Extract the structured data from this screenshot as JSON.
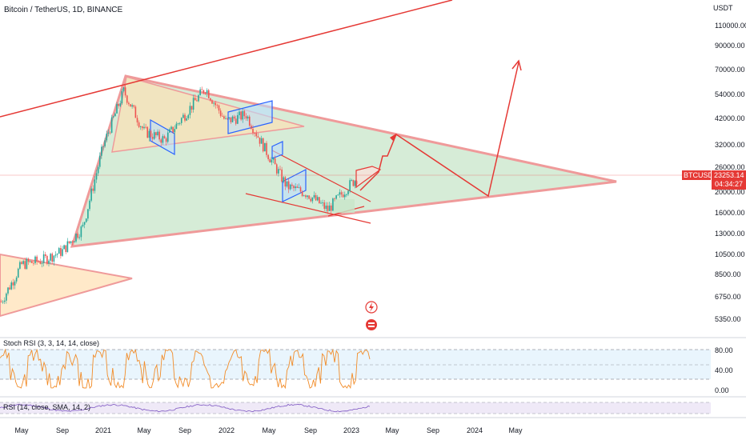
{
  "header": {
    "symbol_title": "Bitcoin / TetherUS, 1D, BINANCE"
  },
  "price_axis": {
    "unit": "USDT",
    "ticks": [
      "110000.00",
      "90000.00",
      "70000.00",
      "54000.00",
      "42000.00",
      "32000.00",
      "26000.00",
      "20000.00",
      "16000.00",
      "13000.00",
      "10500.00",
      "8500.00",
      "6750.00",
      "5350.00"
    ]
  },
  "price_badge": {
    "ticker": "BTCUSDT",
    "price": "23253.14",
    "countdown": "04:34:27",
    "color": "#e53935"
  },
  "time_axis": {
    "ticks": [
      "May",
      "Sep",
      "2021",
      "May",
      "Sep",
      "2022",
      "May",
      "Sep",
      "2023",
      "May",
      "Sep",
      "2024",
      "May"
    ]
  },
  "stoch_rsi": {
    "label": "Stoch RSI (3, 3, 14, 14, close)",
    "ticks": [
      "80.00",
      "40.00",
      "0.00"
    ],
    "color": "#f28c28"
  },
  "rsi": {
    "label": "RSI (14, close, SMA, 14, 2)",
    "color": "#7e57c2"
  },
  "colors": {
    "trend_line": "#e53935",
    "triangle_fill": "#c8e6c9",
    "wedge_fill": "#ffe0b2",
    "up_candle": "#26a69a",
    "down_candle": "#ef5350",
    "channel": "#2962ff"
  },
  "chart_data": {
    "type": "candlestick",
    "title": "Bitcoin / TetherUS, 1D, BINANCE",
    "y_scale": "log",
    "ylim": [
      4800,
      125000
    ],
    "x": [
      "2020-03",
      "2020-05",
      "2020-07",
      "2020-09",
      "2020-11",
      "2021-01",
      "2021-03",
      "2021-05",
      "2021-07",
      "2021-09",
      "2021-11",
      "2022-01",
      "2022-03",
      "2022-05",
      "2022-07",
      "2022-09",
      "2022-11",
      "2023-01",
      "2023-02"
    ],
    "close": [
      6400,
      9400,
      9800,
      10800,
      13800,
      32000,
      56000,
      37000,
      34000,
      44000,
      58000,
      41000,
      44000,
      30000,
      21000,
      19500,
      16500,
      21000,
      23253
    ],
    "last_price": 23253.14,
    "projection": [
      [
        "2023-02",
        23253
      ],
      [
        "2023-03",
        25000
      ],
      [
        "2023-04",
        27500
      ],
      [
        "2023-05",
        31000
      ],
      [
        "2023-06",
        29000
      ],
      [
        "2023-10",
        21000
      ],
      [
        "2023-12",
        19500
      ],
      [
        "2024-04",
        72000
      ]
    ],
    "stoch_rsi_levels": [
      80,
      20
    ],
    "stoch_rsi_ylim": [
      0,
      100
    ]
  }
}
